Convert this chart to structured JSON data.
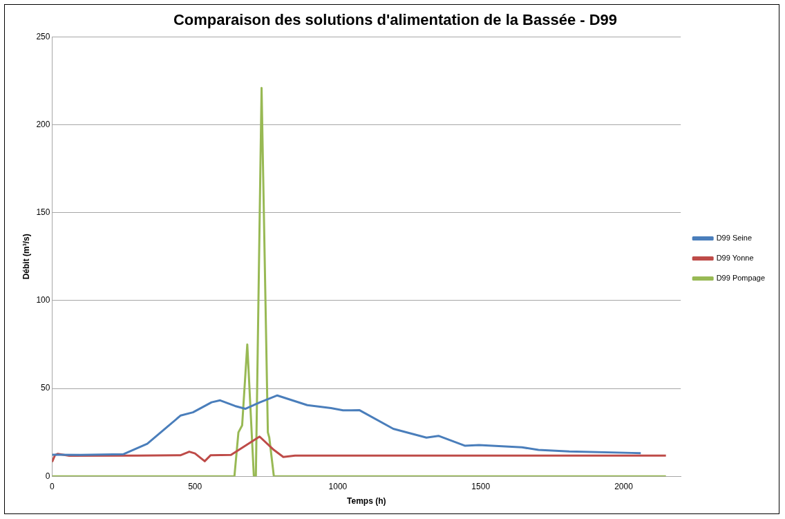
{
  "chart_data": {
    "type": "line",
    "title": "Comparaison des solutions d'alimentation de la Bassée - D99",
    "xlabel": "Temps (h)",
    "ylabel": "Débit (m³/s)",
    "xlim": [
      0,
      2200
    ],
    "xticks": [
      0,
      500,
      1000,
      1500,
      2000
    ],
    "ylim": [
      0,
      250
    ],
    "yticks": [
      0,
      50,
      100,
      150,
      200,
      250
    ],
    "grid": "y",
    "legend": "right",
    "marker": "none",
    "line_style": "solid",
    "series": [
      {
        "name": "D99 Seine",
        "color": "#4a7ebb",
        "x": [
          0,
          100,
          250,
          333,
          393,
          450,
          493,
          558,
          588,
          640,
          676,
          726,
          788,
          893,
          976,
          1018,
          1076,
          1194,
          1310,
          1352,
          1444,
          1494,
          1644,
          1702,
          1810,
          2028,
          2060
        ],
        "values": [
          12.3,
          12.2,
          12.6,
          18.5,
          26.8,
          34.6,
          36.4,
          42.1,
          43.2,
          40,
          38.4,
          42,
          46,
          40.5,
          38.8,
          37.5,
          37.6,
          27,
          22,
          23,
          17.4,
          17.8,
          16.5,
          15,
          14.1,
          13.3,
          13.2
        ]
      },
      {
        "name": "D99 Yonne",
        "color": "#be4b48",
        "x": [
          0,
          10,
          20,
          60,
          300,
          450,
          480,
          500,
          534,
          555,
          626,
          726,
          776,
          809,
          850,
          2148
        ],
        "values": [
          8.2,
          12,
          12.8,
          11.7,
          11.8,
          12,
          14,
          13,
          8.6,
          12,
          12.2,
          22.6,
          15,
          11,
          11.8,
          11.8
        ]
      },
      {
        "name": "D99 Pompage",
        "color": "#98b954",
        "x": [
          0,
          638,
          652,
          665,
          683,
          706,
          713,
          733,
          755,
          760,
          776,
          2148
        ],
        "values": [
          0,
          0,
          25,
          29,
          75,
          0,
          0,
          221,
          25,
          22,
          0,
          0
        ]
      }
    ]
  }
}
